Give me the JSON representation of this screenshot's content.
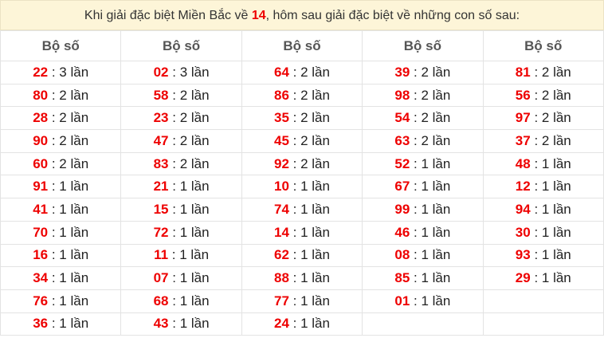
{
  "title": {
    "before": "Khi giải đặc biệt Miền Bắc về ",
    "number": "14",
    "after": ", hôm sau giải đặc biệt về những con số sau:"
  },
  "table": {
    "headers": [
      "Bộ số",
      "Bộ số",
      "Bộ số",
      "Bộ số",
      "Bộ số"
    ],
    "rows": [
      [
        {
          "number": "22",
          "count": ": 3 lần"
        },
        {
          "number": "02",
          "count": ": 3 lần"
        },
        {
          "number": "64",
          "count": ": 2 lần"
        },
        {
          "number": "39",
          "count": ": 2 lần"
        },
        {
          "number": "81",
          "count": ": 2 lần"
        }
      ],
      [
        {
          "number": "80",
          "count": ": 2 lần"
        },
        {
          "number": "58",
          "count": ": 2 lần"
        },
        {
          "number": "86",
          "count": ": 2 lần"
        },
        {
          "number": "98",
          "count": ": 2 lần"
        },
        {
          "number": "56",
          "count": ": 2 lần"
        }
      ],
      [
        {
          "number": "28",
          "count": ": 2 lần"
        },
        {
          "number": "23",
          "count": ": 2 lần"
        },
        {
          "number": "35",
          "count": ": 2 lần"
        },
        {
          "number": "54",
          "count": ": 2 lần"
        },
        {
          "number": "97",
          "count": ": 2 lần"
        }
      ],
      [
        {
          "number": "90",
          "count": ": 2 lần"
        },
        {
          "number": "47",
          "count": ": 2 lần"
        },
        {
          "number": "45",
          "count": ": 2 lần"
        },
        {
          "number": "63",
          "count": ": 2 lần"
        },
        {
          "number": "37",
          "count": ": 2 lần"
        }
      ],
      [
        {
          "number": "60",
          "count": ": 2 lần"
        },
        {
          "number": "83",
          "count": ": 2 lần"
        },
        {
          "number": "92",
          "count": ": 2 lần"
        },
        {
          "number": "52",
          "count": ": 1 lần"
        },
        {
          "number": "48",
          "count": ": 1 lần"
        }
      ],
      [
        {
          "number": "91",
          "count": ": 1 lần"
        },
        {
          "number": "21",
          "count": ": 1 lần"
        },
        {
          "number": "10",
          "count": ": 1 lần"
        },
        {
          "number": "67",
          "count": ": 1 lần"
        },
        {
          "number": "12",
          "count": ": 1 lần"
        }
      ],
      [
        {
          "number": "41",
          "count": ": 1 lần"
        },
        {
          "number": "15",
          "count": ": 1 lần"
        },
        {
          "number": "74",
          "count": ": 1 lần"
        },
        {
          "number": "99",
          "count": ": 1 lần"
        },
        {
          "number": "94",
          "count": ": 1 lần"
        }
      ],
      [
        {
          "number": "70",
          "count": ": 1 lần"
        },
        {
          "number": "72",
          "count": ": 1 lần"
        },
        {
          "number": "14",
          "count": ": 1 lần"
        },
        {
          "number": "46",
          "count": ": 1 lần"
        },
        {
          "number": "30",
          "count": ": 1 lần"
        }
      ],
      [
        {
          "number": "16",
          "count": ": 1 lần"
        },
        {
          "number": "11",
          "count": ": 1 lần"
        },
        {
          "number": "62",
          "count": ": 1 lần"
        },
        {
          "number": "08",
          "count": ": 1 lần"
        },
        {
          "number": "93",
          "count": ": 1 lần"
        }
      ],
      [
        {
          "number": "34",
          "count": ": 1 lần"
        },
        {
          "number": "07",
          "count": ": 1 lần"
        },
        {
          "number": "88",
          "count": ": 1 lần"
        },
        {
          "number": "85",
          "count": ": 1 lần"
        },
        {
          "number": "29",
          "count": ": 1 lần"
        }
      ],
      [
        {
          "number": "76",
          "count": ": 1 lần"
        },
        {
          "number": "68",
          "count": ": 1 lần"
        },
        {
          "number": "77",
          "count": ": 1 lần"
        },
        {
          "number": "01",
          "count": ": 1 lần"
        }
      ],
      [
        {
          "number": "36",
          "count": ": 1 lần"
        },
        {
          "number": "43",
          "count": ": 1 lần"
        },
        {
          "number": "24",
          "count": ": 1 lần"
        }
      ]
    ]
  }
}
